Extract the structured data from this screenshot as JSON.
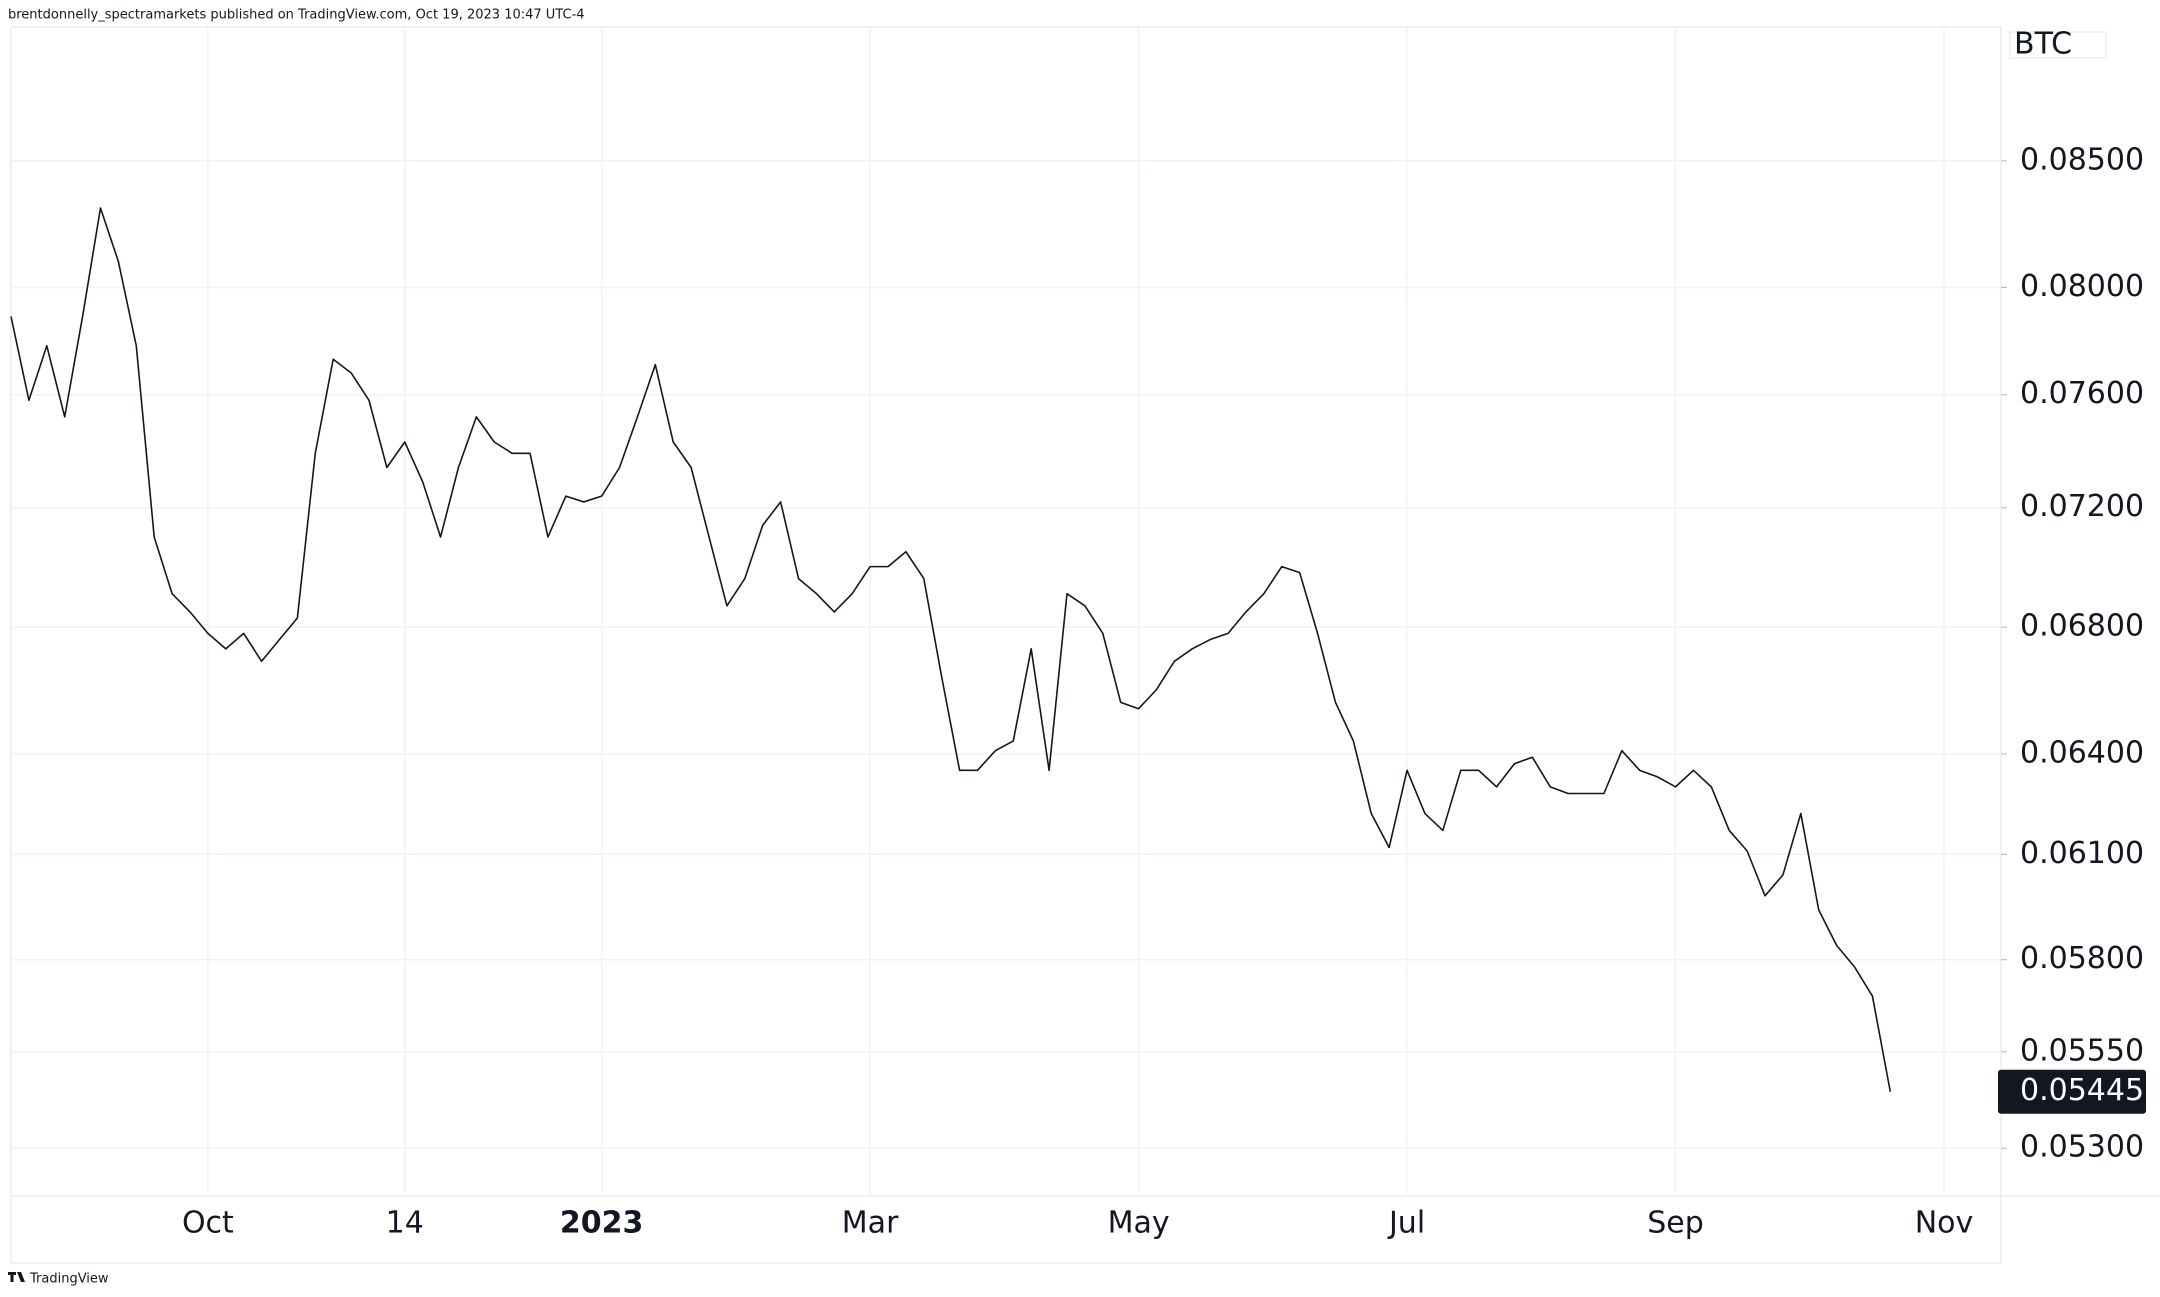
{
  "header": {
    "text": "brentdonnelly_spectramarkets published on TradingView.com, Oct 19, 2023 10:47 UTC-4"
  },
  "footer": {
    "text": "TradingView"
  },
  "chart_data": {
    "type": "line",
    "y_label": "BTC",
    "log_scale": true,
    "grid": true,
    "color": "#131722",
    "categories": [
      null,
      null,
      null,
      null,
      null,
      null,
      null,
      null,
      null,
      null,
      null,
      "Oct",
      null,
      null,
      null,
      null,
      null,
      null,
      null,
      null,
      null,
      null,
      "14",
      null,
      null,
      null,
      null,
      null,
      null,
      null,
      null,
      null,
      null,
      "2023",
      null,
      null,
      null,
      null,
      null,
      null,
      null,
      null,
      null,
      null,
      null,
      null,
      null,
      null,
      "Mar",
      null,
      null,
      null,
      null,
      null,
      null,
      null,
      null,
      null,
      null,
      null,
      null,
      null,
      null,
      "May",
      null,
      null,
      null,
      null,
      null,
      null,
      null,
      null,
      null,
      null,
      null,
      null,
      null,
      null,
      "Jul",
      null,
      null,
      null,
      null,
      null,
      null,
      null,
      null,
      null,
      null,
      null,
      null,
      null,
      null,
      "Sep",
      null,
      null,
      null,
      null,
      null,
      null,
      null,
      null,
      null,
      null,
      null,
      null,
      null,
      null,
      "Nov"
    ],
    "values": [
      0.0789,
      0.0758,
      0.0778,
      0.0752,
      0.0789,
      0.0831,
      0.081,
      0.0778,
      0.071,
      0.0691,
      0.0685,
      0.0678,
      0.0673,
      0.0678,
      0.0669,
      0.0676,
      0.0683,
      0.0739,
      0.0773,
      0.0768,
      0.0758,
      0.0734,
      0.0743,
      0.0729,
      0.071,
      0.0734,
      0.0752,
      0.0743,
      0.0739,
      0.0739,
      0.071,
      0.0724,
      0.0722,
      0.0724,
      0.0734,
      0.0752,
      0.0771,
      0.0743,
      0.0734,
      0.071,
      0.0687,
      0.0696,
      0.0714,
      0.0722,
      0.0696,
      0.0691,
      0.0685,
      0.0691,
      0.07,
      0.07,
      0.0705,
      0.0696,
      0.0664,
      0.0635,
      0.0635,
      0.0641,
      0.0644,
      0.0673,
      0.0635,
      0.0691,
      0.0687,
      0.0678,
      0.0656,
      0.0654,
      0.066,
      0.0669,
      0.0673,
      0.0676,
      0.0678,
      0.0685,
      0.0691,
      0.07,
      0.0698,
      0.0678,
      0.0656,
      0.0644,
      0.0622,
      0.0612,
      0.0635,
      0.0622,
      0.0617,
      0.0635,
      0.0635,
      0.063,
      0.0637,
      0.0639,
      0.063,
      0.0628,
      0.0628,
      0.0628,
      0.0641,
      0.0635,
      0.0633,
      0.063,
      0.0635,
      0.063,
      0.0617,
      0.0611,
      0.0598,
      0.0604,
      0.0622,
      0.0594,
      0.0584,
      0.0578,
      0.057,
      0.05445,
      null,
      null,
      null
    ],
    "ylim": [
      0.0518,
      0.0901
    ],
    "yticks": [
      {
        "value": 0.085,
        "label": "0.08500"
      },
      {
        "value": 0.08,
        "label": "0.08000"
      },
      {
        "value": 0.076,
        "label": "0.07600"
      },
      {
        "value": 0.072,
        "label": "0.07200"
      },
      {
        "value": 0.068,
        "label": "0.06800"
      },
      {
        "value": 0.064,
        "label": "0.06400"
      },
      {
        "value": 0.061,
        "label": "0.06100"
      },
      {
        "value": 0.058,
        "label": "0.05800"
      },
      {
        "value": 0.0555,
        "label": "0.05550"
      },
      {
        "value": 0.053,
        "label": "0.05300"
      }
    ]
  }
}
